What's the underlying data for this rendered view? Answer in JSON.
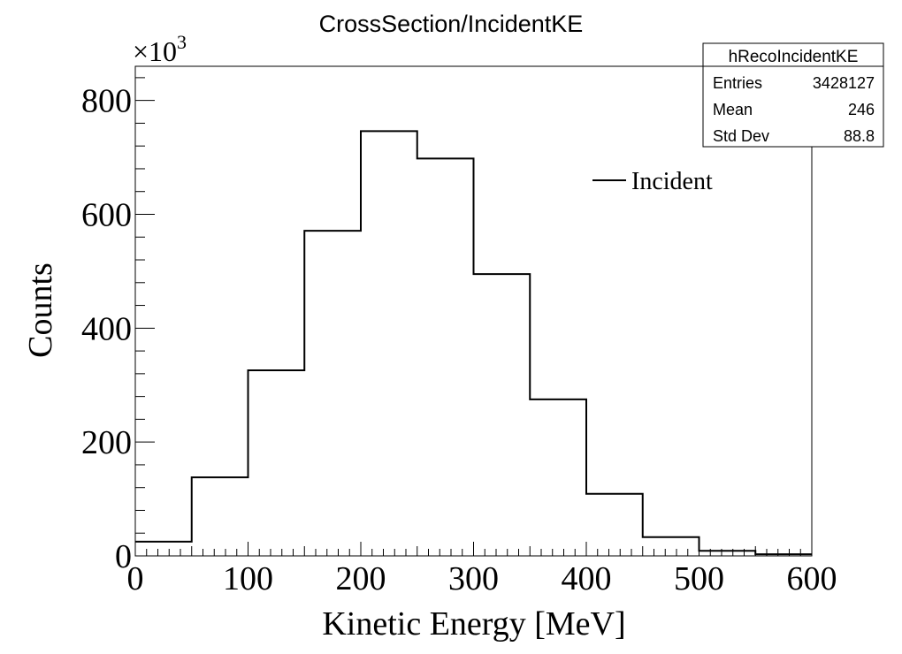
{
  "chart_data": {
    "type": "bar",
    "title": "CrossSection/IncidentKE",
    "xlabel": "Kinetic Energy [MeV]",
    "ylabel": "Counts",
    "y_multiplier_base": "×10",
    "y_multiplier_exp": "3",
    "xlim": [
      0,
      600
    ],
    "ylim": [
      0,
      860
    ],
    "x_ticks": [
      0,
      100,
      200,
      300,
      400,
      500,
      600
    ],
    "y_ticks": [
      0,
      200,
      400,
      600,
      800
    ],
    "bin_edges": [
      0,
      50,
      100,
      150,
      200,
      250,
      300,
      350,
      400,
      450,
      500,
      550,
      600
    ],
    "series": [
      {
        "name": "Incident",
        "values": [
          25,
          138,
          326,
          571,
          746,
          698,
          495,
          275,
          109,
          33,
          9,
          3
        ],
        "color": "#000000"
      }
    ],
    "legend": {
      "position": "top-right",
      "entries": [
        "Incident"
      ]
    },
    "grid": false,
    "stats_box": {
      "name": "hRecoIncidentKE",
      "rows": [
        {
          "label": "Entries",
          "value": "3428127"
        },
        {
          "label": "Mean",
          "value": "246"
        },
        {
          "label": "Std Dev",
          "value": "88.8"
        }
      ]
    }
  }
}
